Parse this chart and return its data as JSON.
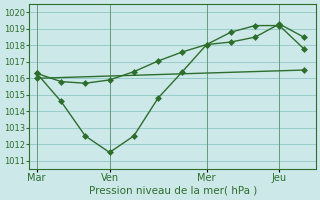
{
  "xlabel": "Pression niveau de la mer( hPa )",
  "background_color": "#cce8e8",
  "grid_color": "#99cccc",
  "line_color": "#2d6e2d",
  "ylim": [
    1010.5,
    1020.5
  ],
  "yticks": [
    1011,
    1012,
    1013,
    1014,
    1015,
    1016,
    1017,
    1018,
    1019,
    1020
  ],
  "xtick_labels": [
    "Mar",
    "Ven",
    "Mer",
    "Jeu"
  ],
  "xtick_positions": [
    0,
    3,
    7,
    10
  ],
  "xlim": [
    -0.3,
    11.5
  ],
  "line1_x": [
    0,
    1,
    2,
    3,
    4,
    5,
    6,
    7,
    8,
    9,
    10,
    11
  ],
  "line1_y": [
    1016.3,
    1015.8,
    1015.7,
    1015.9,
    1016.4,
    1017.05,
    1017.6,
    1018.05,
    1018.8,
    1019.2,
    1019.2,
    1017.8
  ],
  "line2_x": [
    0,
    1,
    2,
    3,
    4,
    5,
    6,
    7,
    8,
    9,
    10,
    11
  ],
  "line2_y": [
    1016.3,
    1014.6,
    1012.5,
    1011.5,
    1012.5,
    1014.8,
    1016.4,
    1018.05,
    1018.2,
    1018.5,
    1019.3,
    1018.5
  ],
  "line3_x": [
    0,
    11
  ],
  "line3_y": [
    1016.0,
    1016.5
  ],
  "vline_positions": [
    0,
    3,
    7,
    10
  ],
  "markersize": 3.0
}
